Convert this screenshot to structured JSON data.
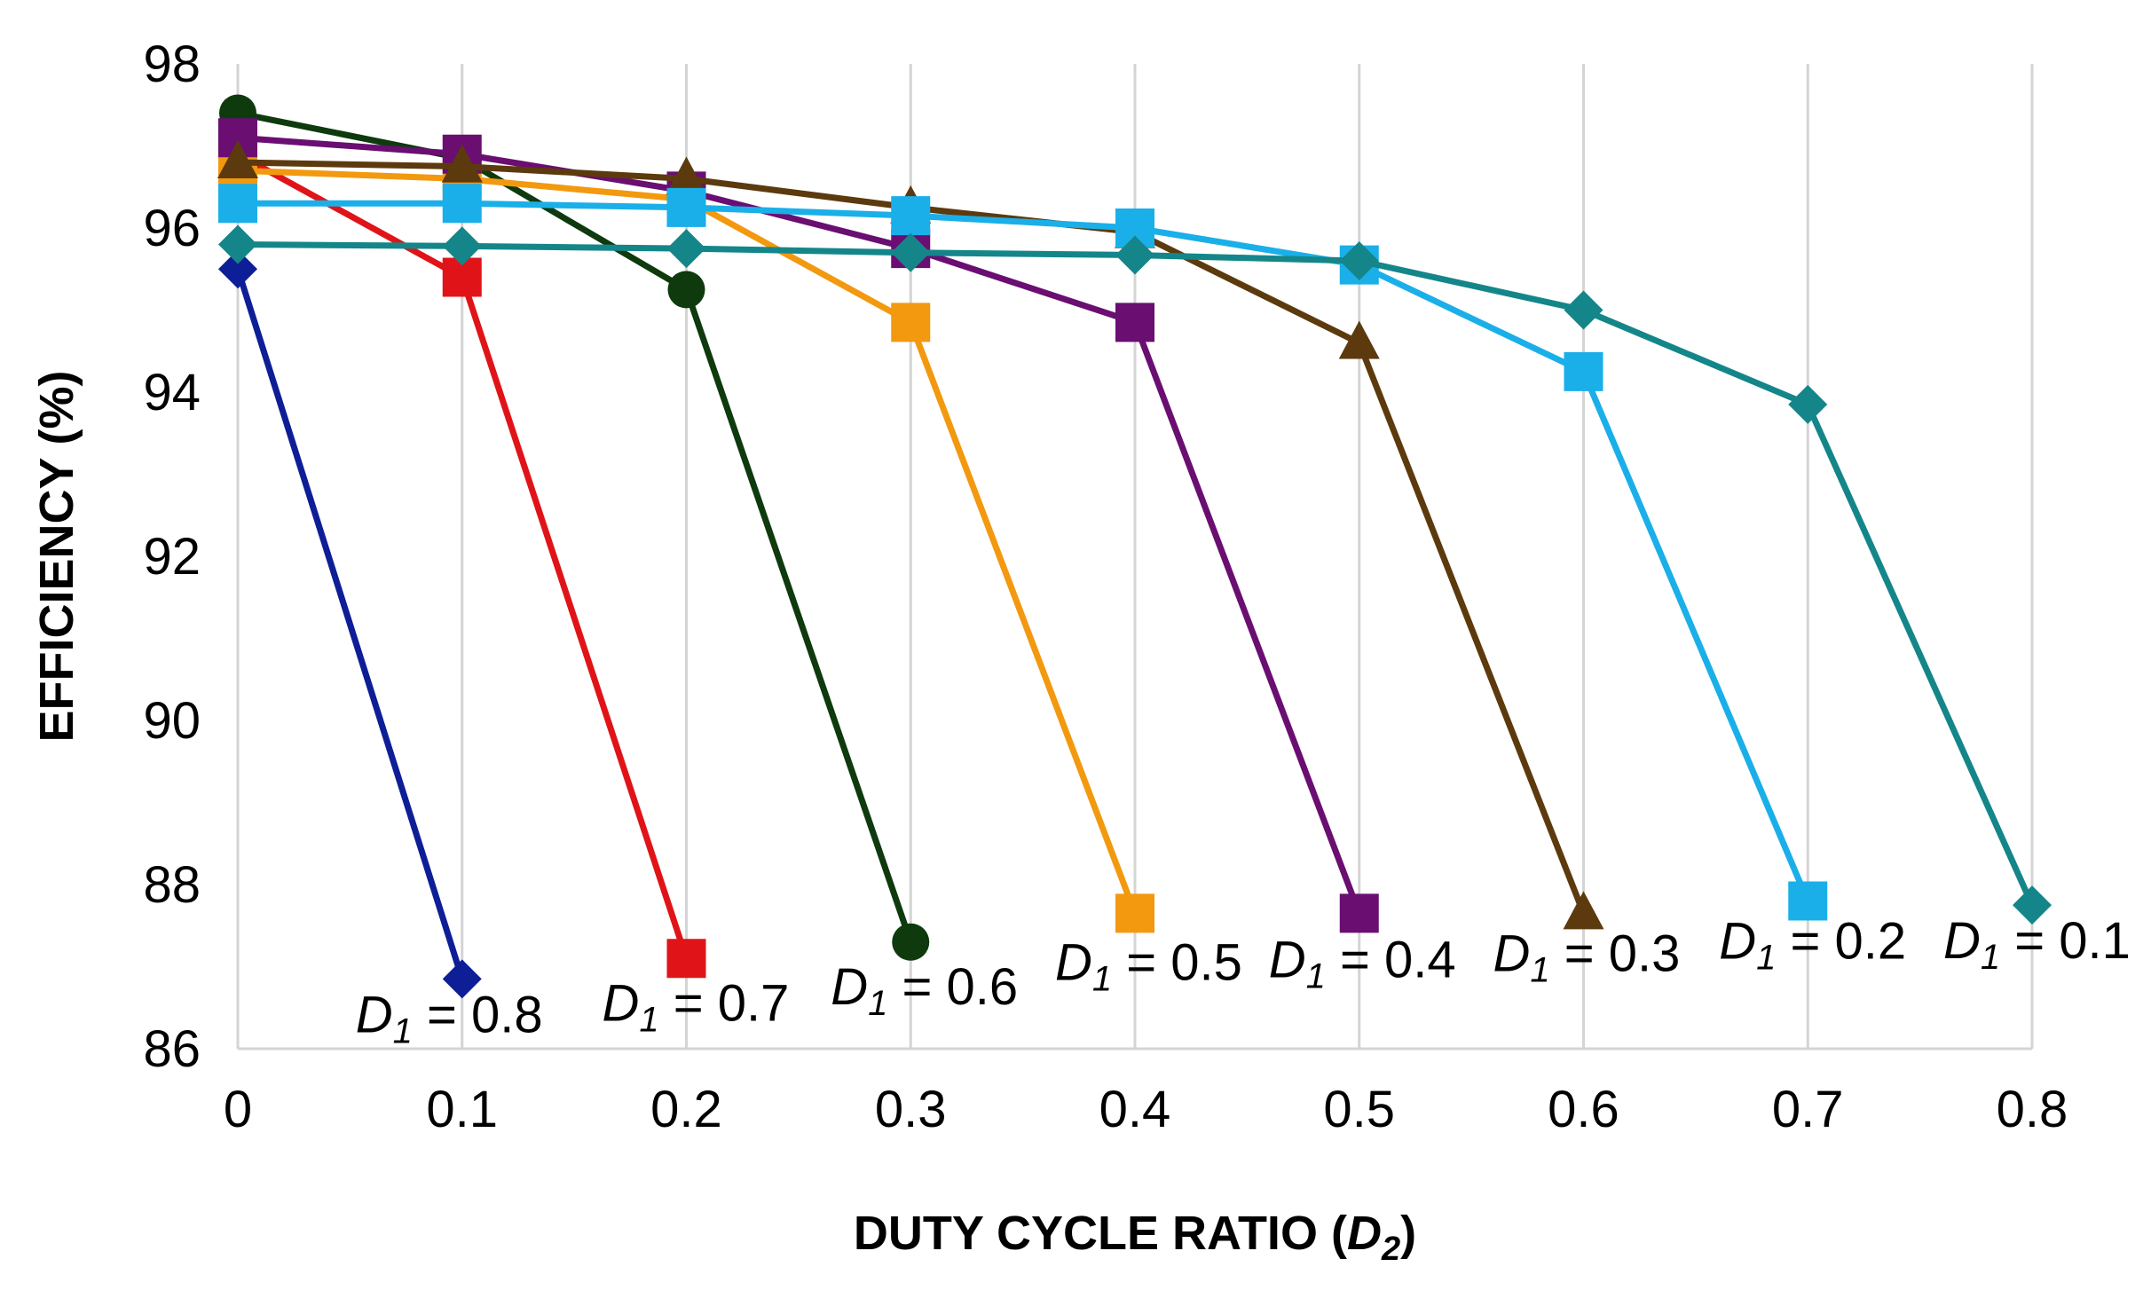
{
  "chart_data": {
    "type": "line",
    "title": "",
    "xlabel": {
      "prefix": "DUTY CYCLE RATIO (",
      "var": "D",
      "sub": "2",
      "suffix": ")"
    },
    "ylabel": "EFFICIENCY (%)",
    "xlim": [
      0,
      0.8
    ],
    "ylim": [
      86,
      98
    ],
    "x_ticks": [
      "0",
      "0.1",
      "0.2",
      "0.3",
      "0.4",
      "0.5",
      "0.6",
      "0.7",
      "0.8"
    ],
    "y_ticks": [
      "86",
      "88",
      "90",
      "92",
      "94",
      "96",
      "98"
    ],
    "grid": "vertical",
    "legend": "inline labels near curve ends",
    "series": [
      {
        "name": "D1 = 0.1",
        "label": {
          "var": "D",
          "sub": "1",
          "rest": " = 0.1"
        },
        "color": "#14868A",
        "marker": "diamond",
        "x": [
          0,
          0.1,
          0.2,
          0.3,
          0.4,
          0.5,
          0.6,
          0.7,
          0.8
        ],
        "values": [
          95.8,
          95.78,
          95.75,
          95.7,
          95.67,
          95.6,
          95.0,
          93.85,
          87.75
        ]
      },
      {
        "name": "D1 = 0.2",
        "label": {
          "var": "D",
          "sub": "1",
          "rest": " = 0.2"
        },
        "color": "#1AAFE8",
        "marker": "square",
        "x": [
          0,
          0.1,
          0.2,
          0.3,
          0.4,
          0.5,
          0.6,
          0.7
        ],
        "values": [
          96.3,
          96.3,
          96.25,
          96.15,
          96.0,
          95.55,
          94.25,
          87.8
        ]
      },
      {
        "name": "D1 = 0.3",
        "label": {
          "var": "D",
          "sub": "1",
          "rest": " = 0.3"
        },
        "color": "#5C3A0E",
        "marker": "triangle",
        "x": [
          0,
          0.1,
          0.2,
          0.3,
          0.4,
          0.5,
          0.6
        ],
        "values": [
          96.8,
          96.75,
          96.6,
          96.25,
          95.95,
          94.6,
          87.65
        ]
      },
      {
        "name": "D1 = 0.4",
        "label": {
          "var": "D",
          "sub": "1",
          "rest": " = 0.4"
        },
        "color": "#6A0E72",
        "marker": "square",
        "x": [
          0,
          0.1,
          0.2,
          0.3,
          0.4,
          0.5
        ],
        "values": [
          97.1,
          96.9,
          96.45,
          95.75,
          94.85,
          87.65
        ]
      },
      {
        "name": "D1 = 0.5",
        "label": {
          "var": "D",
          "sub": "1",
          "rest": " = 0.5"
        },
        "color": "#F2990F",
        "marker": "square",
        "x": [
          0,
          0.1,
          0.2,
          0.3,
          0.4
        ],
        "values": [
          96.7,
          96.6,
          96.35,
          94.85,
          87.65
        ]
      },
      {
        "name": "D1 = 0.6",
        "label": {
          "var": "D",
          "sub": "1",
          "rest": " = 0.6"
        },
        "color": "#0E3A0E",
        "marker": "circle",
        "x": [
          0,
          0.1,
          0.2,
          0.3
        ],
        "values": [
          97.4,
          96.85,
          95.25,
          87.3
        ]
      },
      {
        "name": "D1 = 0.7",
        "label": {
          "var": "D",
          "sub": "1",
          "rest": " = 0.7"
        },
        "color": "#E01418",
        "marker": "square",
        "x": [
          0,
          0.1,
          0.2
        ],
        "values": [
          96.9,
          95.4,
          87.1
        ]
      },
      {
        "name": "D1 = 0.8",
        "label": {
          "var": "D",
          "sub": "1",
          "rest": " = 0.8"
        },
        "color": "#0E1E96",
        "marker": "diamond",
        "x": [
          0,
          0.1
        ],
        "values": [
          95.5,
          86.85
        ]
      }
    ]
  }
}
